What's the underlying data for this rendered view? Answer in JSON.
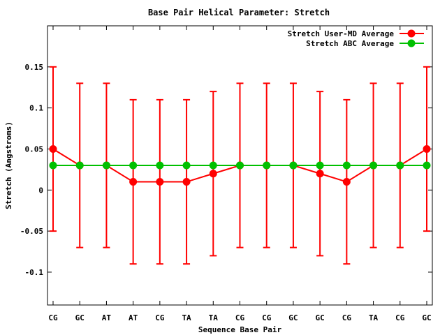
{
  "chart_data": {
    "type": "line",
    "title": "Base Pair Helical Parameter: Stretch",
    "xlabel": "Sequence Base Pair",
    "ylabel": "Stretch (Angstroms)",
    "categories": [
      "CG",
      "GC",
      "AT",
      "AT",
      "CG",
      "TA",
      "TA",
      "CG",
      "CG",
      "GC",
      "GC",
      "CG",
      "TA",
      "CG",
      "GC"
    ],
    "ylim": [
      -0.14,
      0.2
    ],
    "yticks": [
      {
        "value": -0.1,
        "label": "-0.1"
      },
      {
        "value": -0.05,
        "label": "-0.05"
      },
      {
        "value": 0,
        "label": "0"
      },
      {
        "value": 0.05,
        "label": "0.05"
      },
      {
        "value": 0.1,
        "label": "0.1"
      },
      {
        "value": 0.15,
        "label": "0.15"
      }
    ],
    "grid": false,
    "legend_position": "top-right",
    "series": [
      {
        "name": "Stretch User-MD Average",
        "color": "#ff0000",
        "values": [
          0.05,
          0.03,
          0.03,
          0.01,
          0.01,
          0.01,
          0.02,
          0.03,
          0.03,
          0.03,
          0.02,
          0.01,
          0.03,
          0.03,
          0.05
        ],
        "error_low": [
          -0.05,
          -0.07,
          -0.07,
          -0.09,
          -0.09,
          -0.09,
          -0.08,
          -0.07,
          -0.07,
          -0.07,
          -0.08,
          -0.09,
          -0.07,
          -0.07,
          -0.05
        ],
        "error_high": [
          0.15,
          0.13,
          0.13,
          0.11,
          0.11,
          0.11,
          0.12,
          0.13,
          0.13,
          0.13,
          0.12,
          0.11,
          0.13,
          0.13,
          0.15
        ]
      },
      {
        "name": "Stretch ABC Average",
        "color": "#00c000",
        "values": [
          0.03,
          0.03,
          0.03,
          0.03,
          0.03,
          0.03,
          0.03,
          0.03,
          0.03,
          0.03,
          0.03,
          0.03,
          0.03,
          0.03,
          0.03
        ]
      }
    ]
  }
}
